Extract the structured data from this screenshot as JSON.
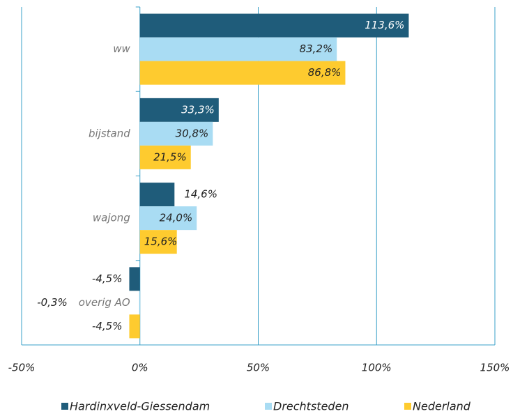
{
  "chart_data": {
    "type": "barh",
    "categories": [
      "ww",
      "bijstand",
      "wajong",
      "overig AO"
    ],
    "series": [
      {
        "name": "Hardinxveld-Giessendam",
        "color": "#1f5c7a",
        "values": [
          113.6,
          33.3,
          14.6,
          -4.5
        ],
        "value_labels": [
          "113,6%",
          "33,3%",
          "14,6%",
          "-4,5%"
        ]
      },
      {
        "name": "Drechtsteden",
        "color": "#a9dcf3",
        "values": [
          83.2,
          30.8,
          24.0,
          -0.3
        ],
        "value_labels": [
          "83,2%",
          "30,8%",
          "24,0%",
          "-0,3%"
        ]
      },
      {
        "name": "Nederland",
        "color": "#fecb2f",
        "values": [
          86.8,
          21.5,
          15.6,
          -4.5
        ],
        "value_labels": [
          "86,8%",
          "21,5%",
          "15,6%",
          "-4,5%"
        ]
      }
    ],
    "xlim": [
      -50,
      150
    ],
    "xticks": [
      {
        "value": -50,
        "label": "-50%"
      },
      {
        "value": 0,
        "label": "0%"
      },
      {
        "value": 50,
        "label": "50%"
      },
      {
        "value": 100,
        "label": "100%"
      },
      {
        "value": 150,
        "label": "150%"
      }
    ],
    "grid": true,
    "legend": "bottom"
  }
}
